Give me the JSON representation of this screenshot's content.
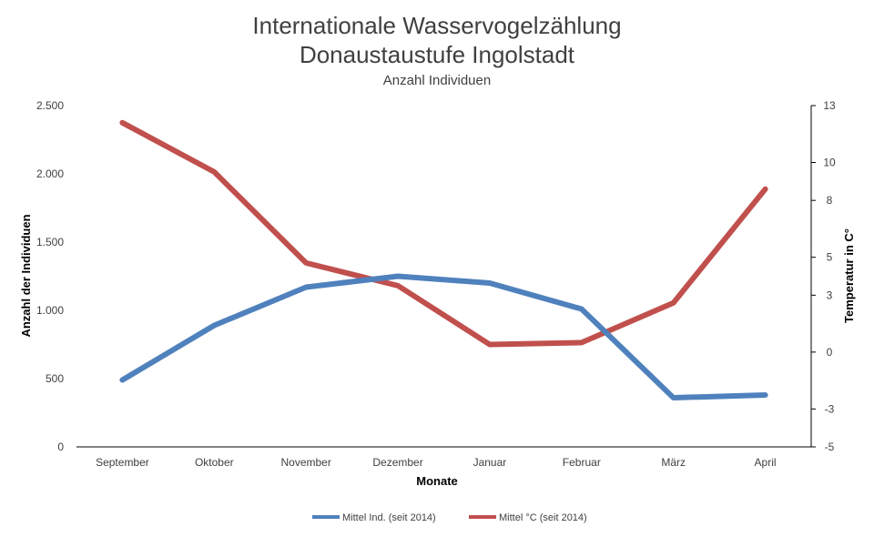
{
  "chart_data": {
    "type": "line",
    "title_line1": "Internationale Wasservogelzählung",
    "title_line2": "Donaustaustufe Ingolstadt",
    "subtitle": "Anzahl Individuen",
    "xlabel": "Monate",
    "ylabel_left": "Anzahl der Individuen",
    "ylabel_right": "Temperatur in C°",
    "categories": [
      "September",
      "Oktober",
      "November",
      "Dezember",
      "Januar",
      "Februar",
      "März",
      "April"
    ],
    "y_left": {
      "min": 0,
      "max": 2500,
      "ticks": [
        0,
        500,
        1000,
        1500,
        2000,
        2500
      ],
      "tick_labels": [
        "0",
        "500",
        "1.000",
        "1.500",
        "2.000",
        "2.500"
      ]
    },
    "y_right": {
      "min": -5,
      "max": 13,
      "ticks": [
        -5,
        -3,
        0,
        3,
        5,
        8,
        10,
        13
      ],
      "tick_labels": [
        "-5",
        "-3",
        "0",
        "3",
        "5",
        "8",
        "10",
        "13"
      ]
    },
    "series": [
      {
        "name": "Mittel Ind. (seit 2014)",
        "axis": "left",
        "color": "#4F81BD",
        "values": [
          490,
          890,
          1170,
          1250,
          1200,
          1010,
          360,
          380
        ]
      },
      {
        "name": "Mittel °C (seit 2014)",
        "axis": "right",
        "color": "#C0504D",
        "values": [
          12.1,
          9.5,
          4.7,
          3.5,
          0.4,
          0.5,
          2.6,
          8.6
        ]
      }
    ],
    "legend_position": "bottom"
  }
}
